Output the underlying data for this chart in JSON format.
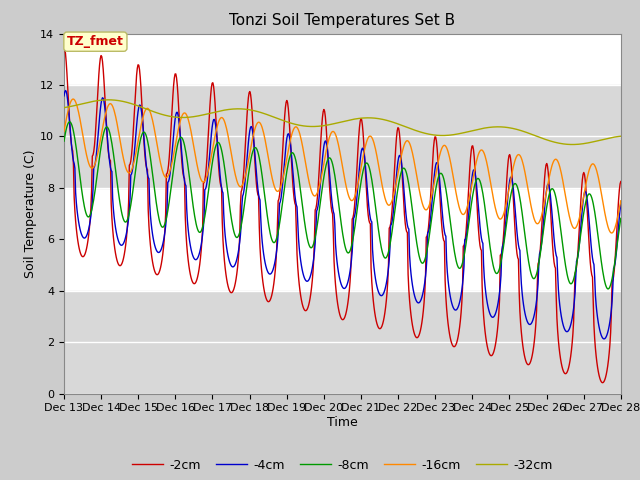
{
  "title": "Tonzi Soil Temperatures Set B",
  "xlabel": "Time",
  "ylabel": "Soil Temperature (C)",
  "ylim": [
    0,
    14
  ],
  "xlim_days": [
    13,
    28
  ],
  "x_tick_labels": [
    "Dec 13",
    "Dec 14",
    "Dec 15",
    "Dec 16",
    "Dec 17",
    "Dec 18",
    "Dec 19",
    "Dec 20",
    "Dec 21",
    "Dec 22",
    "Dec 23",
    "Dec 24",
    "Dec 25",
    "Dec 26",
    "Dec 27",
    "Dec 28"
  ],
  "series_colors": [
    "#cc0000",
    "#0000cc",
    "#009900",
    "#ff8800",
    "#aaaa00"
  ],
  "series_labels": [
    "-2cm",
    "-4cm",
    "-8cm",
    "-16cm",
    "-32cm"
  ],
  "annotation_text": "TZ_fmet",
  "annotation_color": "#cc0000",
  "annotation_bg": "#ffffcc",
  "bg_color": "#cccccc",
  "plot_bg": "#cccccc",
  "white_bands": [
    {
      "ymin": 4,
      "ymax": 8
    },
    {
      "ymin": 12,
      "ymax": 14
    }
  ],
  "title_fontsize": 11,
  "axis_label_fontsize": 9,
  "tick_label_fontsize": 8,
  "legend_fontsize": 9
}
